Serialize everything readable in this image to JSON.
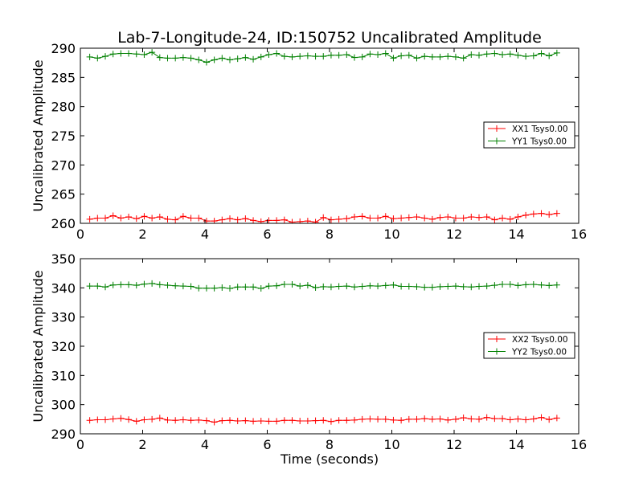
{
  "chart_data": [
    {
      "type": "line",
      "title": "Lab-7-Longitude-24, ID:150752 Uncalibrated Amplitude",
      "xlabel": "",
      "ylabel": "Uncalibrated Amplitude",
      "xlim": [
        0,
        16
      ],
      "ylim": [
        260,
        290
      ],
      "xticks": [
        0,
        2,
        4,
        6,
        8,
        10,
        12,
        14,
        16
      ],
      "yticks": [
        260,
        265,
        270,
        275,
        280,
        285,
        290
      ],
      "legend_position": "right",
      "x": [
        0.3,
        0.55,
        0.8,
        1.05,
        1.3,
        1.55,
        1.8,
        2.05,
        2.3,
        2.55,
        2.8,
        3.05,
        3.3,
        3.55,
        3.8,
        4.05,
        4.3,
        4.55,
        4.8,
        5.05,
        5.3,
        5.55,
        5.8,
        6.05,
        6.3,
        6.55,
        6.8,
        7.05,
        7.3,
        7.55,
        7.8,
        8.05,
        8.3,
        8.55,
        8.8,
        9.05,
        9.3,
        9.55,
        9.8,
        10.05,
        10.3,
        10.55,
        10.8,
        11.05,
        11.3,
        11.55,
        11.8,
        12.05,
        12.3,
        12.55,
        12.8,
        13.05,
        13.3,
        13.55,
        13.8,
        14.05,
        14.3,
        14.55,
        14.8,
        15.05,
        15.3
      ],
      "series": [
        {
          "name": "XX1 Tsys0.00",
          "color": "#ff0000",
          "values": [
            260.7,
            260.9,
            260.9,
            261.3,
            260.9,
            261.1,
            260.8,
            261.2,
            260.9,
            261.1,
            260.7,
            260.6,
            261.2,
            260.9,
            260.9,
            260.4,
            260.4,
            260.6,
            260.8,
            260.6,
            260.8,
            260.5,
            260.3,
            260.5,
            260.5,
            260.6,
            260.2,
            260.3,
            260.4,
            260.2,
            261.0,
            260.6,
            260.7,
            260.8,
            261.1,
            261.2,
            260.9,
            260.9,
            261.2,
            260.8,
            260.9,
            261.0,
            261.1,
            260.9,
            260.7,
            261.0,
            261.1,
            260.9,
            260.9,
            261.1,
            261.0,
            261.1,
            260.6,
            260.9,
            260.7,
            261.1,
            261.4,
            261.6,
            261.7,
            261.5,
            261.7
          ]
        },
        {
          "name": "YY1 Tsys0.00",
          "color": "#008000",
          "values": [
            288.5,
            288.3,
            288.6,
            289.0,
            289.1,
            289.1,
            289.0,
            288.9,
            289.3,
            288.4,
            288.3,
            288.3,
            288.4,
            288.3,
            288.0,
            287.6,
            288.0,
            288.3,
            288.0,
            288.2,
            288.4,
            288.1,
            288.5,
            288.9,
            289.1,
            288.6,
            288.5,
            288.6,
            288.7,
            288.6,
            288.6,
            288.8,
            288.8,
            288.9,
            288.4,
            288.5,
            289.0,
            288.9,
            289.1,
            288.3,
            288.7,
            288.8,
            288.3,
            288.6,
            288.5,
            288.5,
            288.6,
            288.5,
            288.3,
            288.9,
            288.8,
            289.0,
            289.1,
            288.9,
            289.0,
            288.8,
            288.6,
            288.7,
            289.1,
            288.7,
            289.2
          ]
        }
      ]
    },
    {
      "type": "line",
      "title": "",
      "xlabel": "Time (seconds)",
      "ylabel": "Uncalibrated Amplitude",
      "xlim": [
        0,
        16
      ],
      "ylim": [
        290,
        350
      ],
      "xticks": [
        0,
        2,
        4,
        6,
        8,
        10,
        12,
        14,
        16
      ],
      "yticks": [
        290,
        300,
        310,
        320,
        330,
        340,
        350
      ],
      "legend_position": "right",
      "x": [
        0.3,
        0.55,
        0.8,
        1.05,
        1.3,
        1.55,
        1.8,
        2.05,
        2.3,
        2.55,
        2.8,
        3.05,
        3.3,
        3.55,
        3.8,
        4.05,
        4.3,
        4.55,
        4.8,
        5.05,
        5.3,
        5.55,
        5.8,
        6.05,
        6.3,
        6.55,
        6.8,
        7.05,
        7.3,
        7.55,
        7.8,
        8.05,
        8.3,
        8.55,
        8.8,
        9.05,
        9.3,
        9.55,
        9.8,
        10.05,
        10.3,
        10.55,
        10.8,
        11.05,
        11.3,
        11.55,
        11.8,
        12.05,
        12.3,
        12.55,
        12.8,
        13.05,
        13.3,
        13.55,
        13.8,
        14.05,
        14.3,
        14.55,
        14.8,
        15.05,
        15.3
      ],
      "series": [
        {
          "name": "XX2 Tsys0.00",
          "color": "#ff0000",
          "values": [
            294.6,
            294.8,
            294.8,
            295.1,
            295.3,
            294.9,
            294.3,
            294.8,
            295.0,
            295.4,
            294.7,
            294.6,
            294.8,
            294.6,
            294.7,
            294.5,
            294.0,
            294.5,
            294.6,
            294.4,
            294.5,
            294.3,
            294.4,
            294.3,
            294.3,
            294.6,
            294.6,
            294.4,
            294.4,
            294.5,
            294.6,
            294.2,
            294.6,
            294.6,
            294.7,
            295.0,
            295.1,
            295.0,
            295.0,
            294.7,
            294.6,
            295.0,
            295.0,
            295.2,
            295.0,
            295.1,
            294.7,
            295.0,
            295.5,
            295.1,
            295.0,
            295.6,
            295.2,
            295.2,
            294.8,
            295.1,
            294.8,
            295.1,
            295.6,
            294.9,
            295.4
          ]
        },
        {
          "name": "YY2 Tsys0.00",
          "color": "#008000",
          "values": [
            340.6,
            340.6,
            340.3,
            341.0,
            341.1,
            341.1,
            340.9,
            341.3,
            341.5,
            341.1,
            340.9,
            340.7,
            340.6,
            340.5,
            339.9,
            339.9,
            339.9,
            340.1,
            339.8,
            340.3,
            340.3,
            340.3,
            339.8,
            340.6,
            340.7,
            341.2,
            341.2,
            340.6,
            340.9,
            340.1,
            340.4,
            340.3,
            340.5,
            340.6,
            340.3,
            340.5,
            340.7,
            340.6,
            340.8,
            341.0,
            340.5,
            340.5,
            340.4,
            340.2,
            340.2,
            340.4,
            340.5,
            340.6,
            340.4,
            340.3,
            340.5,
            340.6,
            340.9,
            341.2,
            341.2,
            340.8,
            341.1,
            341.2,
            341.0,
            340.8,
            341.0
          ]
        }
      ]
    }
  ]
}
